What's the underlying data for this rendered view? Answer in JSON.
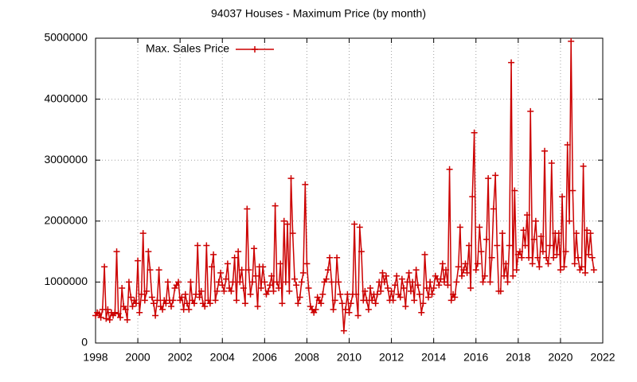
{
  "chart_data": {
    "type": "line",
    "title": "94037 Houses - Maximum Price (by month)",
    "xlim": [
      1998,
      2022
    ],
    "xticks": [
      1998,
      2000,
      2002,
      2004,
      2006,
      2008,
      2010,
      2012,
      2014,
      2016,
      2018,
      2020,
      2022
    ],
    "ylim": [
      0,
      5000000
    ],
    "yticks": [
      0,
      1000000,
      2000000,
      3000000,
      4000000,
      5000000
    ],
    "grid": true,
    "legend": "top-left",
    "x": [
      1998.0,
      1998.08,
      1998.17,
      1998.25,
      1998.33,
      1998.42,
      1998.5,
      1998.58,
      1998.67,
      1998.75,
      1998.83,
      1998.92,
      1999.0,
      1999.08,
      1999.17,
      1999.25,
      1999.33,
      1999.42,
      1999.5,
      1999.58,
      1999.67,
      1999.75,
      1999.83,
      1999.92,
      2000.0,
      2000.08,
      2000.17,
      2000.25,
      2000.33,
      2000.42,
      2000.5,
      2000.58,
      2000.67,
      2000.75,
      2000.83,
      2000.92,
      2001.0,
      2001.08,
      2001.17,
      2001.25,
      2001.33,
      2001.42,
      2001.5,
      2001.58,
      2001.67,
      2001.75,
      2001.83,
      2001.92,
      2002.0,
      2002.08,
      2002.17,
      2002.25,
      2002.33,
      2002.42,
      2002.5,
      2002.58,
      2002.67,
      2002.75,
      2002.83,
      2002.92,
      2003.0,
      2003.08,
      2003.17,
      2003.25,
      2003.33,
      2003.42,
      2003.5,
      2003.58,
      2003.67,
      2003.75,
      2003.83,
      2003.92,
      2004.0,
      2004.08,
      2004.17,
      2004.25,
      2004.33,
      2004.42,
      2004.5,
      2004.58,
      2004.67,
      2004.75,
      2004.83,
      2004.92,
      2005.0,
      2005.08,
      2005.17,
      2005.25,
      2005.33,
      2005.42,
      2005.5,
      2005.58,
      2005.67,
      2005.75,
      2005.83,
      2005.92,
      2006.0,
      2006.08,
      2006.17,
      2006.25,
      2006.33,
      2006.42,
      2006.5,
      2006.58,
      2006.67,
      2006.75,
      2006.83,
      2006.92,
      2007.0,
      2007.08,
      2007.17,
      2007.25,
      2007.33,
      2007.42,
      2007.5,
      2007.58,
      2007.67,
      2007.75,
      2007.83,
      2007.92,
      2008.0,
      2008.08,
      2008.17,
      2008.25,
      2008.33,
      2008.42,
      2008.5,
      2008.58,
      2008.67,
      2008.75,
      2008.83,
      2008.92,
      2009.0,
      2009.08,
      2009.17,
      2009.25,
      2009.33,
      2009.42,
      2009.5,
      2009.58,
      2009.67,
      2009.75,
      2009.83,
      2009.92,
      2010.0,
      2010.08,
      2010.17,
      2010.25,
      2010.33,
      2010.42,
      2010.5,
      2010.58,
      2010.67,
      2010.75,
      2010.83,
      2010.92,
      2011.0,
      2011.08,
      2011.17,
      2011.25,
      2011.33,
      2011.42,
      2011.5,
      2011.58,
      2011.67,
      2011.75,
      2011.83,
      2011.92,
      2012.0,
      2012.08,
      2012.17,
      2012.25,
      2012.33,
      2012.42,
      2012.5,
      2012.58,
      2012.67,
      2012.75,
      2012.83,
      2012.92,
      2013.0,
      2013.08,
      2013.17,
      2013.25,
      2013.33,
      2013.42,
      2013.5,
      2013.58,
      2013.67,
      2013.75,
      2013.83,
      2013.92,
      2014.0,
      2014.08,
      2014.17,
      2014.25,
      2014.33,
      2014.42,
      2014.5,
      2014.58,
      2014.67,
      2014.75,
      2014.83,
      2014.92,
      2015.0,
      2015.08,
      2015.17,
      2015.25,
      2015.33,
      2015.42,
      2015.5,
      2015.58,
      2015.67,
      2015.75,
      2015.83,
      2015.92,
      2016.0,
      2016.08,
      2016.17,
      2016.25,
      2016.33,
      2016.42,
      2016.5,
      2016.58,
      2016.67,
      2016.75,
      2016.83,
      2016.92,
      2017.0,
      2017.08,
      2017.17,
      2017.25,
      2017.33,
      2017.42,
      2017.5,
      2017.58,
      2017.67,
      2017.75,
      2017.83,
      2017.92,
      2018.0,
      2018.08,
      2018.17,
      2018.25,
      2018.33,
      2018.42,
      2018.5,
      2018.58,
      2018.67,
      2018.75,
      2018.83,
      2018.92,
      2019.0,
      2019.08,
      2019.17,
      2019.25,
      2019.33,
      2019.42,
      2019.5,
      2019.58,
      2019.67,
      2019.75,
      2019.83,
      2019.92,
      2020.0,
      2020.08,
      2020.17,
      2020.25,
      2020.33,
      2020.42,
      2020.5,
      2020.58,
      2020.67,
      2020.75,
      2020.83,
      2020.92,
      2021.0,
      2021.08,
      2021.17,
      2021.25,
      2021.33,
      2021.42,
      2021.5,
      2021.58
    ],
    "series": [
      {
        "name": "Max. Sales Price",
        "color": "#cc0000",
        "values": [
          450000,
          500000,
          480000,
          420000,
          550000,
          1250000,
          400000,
          550000,
          380000,
          500000,
          450000,
          500000,
          1500000,
          480000,
          420000,
          900000,
          600000,
          550000,
          380000,
          1000000,
          750000,
          600000,
          700000,
          650000,
          1350000,
          500000,
          800000,
          1800000,
          700000,
          850000,
          1500000,
          1200000,
          750000,
          650000,
          450000,
          700000,
          1200000,
          600000,
          550000,
          700000,
          650000,
          1000000,
          700000,
          600000,
          700000,
          900000,
          950000,
          1000000,
          700000,
          750000,
          550000,
          800000,
          650000,
          550000,
          1000000,
          700000,
          650000,
          800000,
          1600000,
          750000,
          850000,
          650000,
          600000,
          1600000,
          700000,
          650000,
          1250000,
          1450000,
          700000,
          850000,
          1000000,
          1150000,
          950000,
          850000,
          1050000,
          1300000,
          900000,
          850000,
          1000000,
          1400000,
          700000,
          1500000,
          1000000,
          1200000,
          900000,
          650000,
          2200000,
          1200000,
          800000,
          1000000,
          1550000,
          1100000,
          600000,
          1250000,
          900000,
          1250000,
          1000000,
          800000,
          850000,
          950000,
          1100000,
          850000,
          2250000,
          1000000,
          900000,
          1300000,
          650000,
          2000000,
          1000000,
          1950000,
          850000,
          2700000,
          1800000,
          1050000,
          950000,
          650000,
          750000,
          1000000,
          1150000,
          2600000,
          1300000,
          900000,
          600000,
          550000,
          500000,
          550000,
          750000,
          700000,
          650000,
          800000,
          1000000,
          1050000,
          1200000,
          1400000,
          1000000,
          550000,
          700000,
          1400000,
          1000000,
          800000,
          650000,
          200000,
          550000,
          800000,
          500000,
          650000,
          800000,
          1950000,
          800000,
          450000,
          1900000,
          1500000,
          700000,
          850000,
          700000,
          550000,
          900000,
          700000,
          800000,
          650000,
          800000,
          1000000,
          850000,
          1150000,
          1000000,
          1100000,
          900000,
          700000,
          850000,
          700000,
          950000,
          1100000,
          800000,
          750000,
          1050000,
          900000,
          600000,
          1000000,
          1150000,
          850000,
          1000000,
          700000,
          1200000,
          950000,
          800000,
          500000,
          650000,
          1450000,
          900000,
          750000,
          1000000,
          800000,
          900000,
          1100000,
          1050000,
          950000,
          1050000,
          1300000,
          1000000,
          1200000,
          950000,
          2850000,
          700000,
          800000,
          750000,
          1000000,
          1250000,
          1900000,
          1100000,
          1200000,
          1300000,
          1150000,
          1600000,
          900000,
          2400000,
          3450000,
          1200000,
          1300000,
          1900000,
          1500000,
          1000000,
          1100000,
          1700000,
          2700000,
          1000000,
          1400000,
          2200000,
          2750000,
          1600000,
          850000,
          850000,
          1800000,
          1100000,
          1300000,
          1000000,
          1600000,
          4600000,
          1100000,
          2500000,
          1200000,
          1450000,
          1500000,
          1400000,
          1850000,
          1600000,
          2100000,
          1400000,
          3800000,
          1300000,
          1700000,
          2000000,
          1400000,
          1250000,
          1750000,
          1500000,
          3150000,
          1400000,
          1300000,
          1600000,
          2950000,
          1400000,
          1800000,
          1450000,
          1800000,
          1200000,
          2400000,
          1250000,
          1500000,
          3250000,
          2000000,
          4950000,
          2500000,
          1300000,
          1800000,
          1400000,
          1200000,
          1250000,
          2900000,
          1150000,
          1850000,
          1450000,
          1800000,
          1400000,
          1200000
        ]
      }
    ]
  }
}
